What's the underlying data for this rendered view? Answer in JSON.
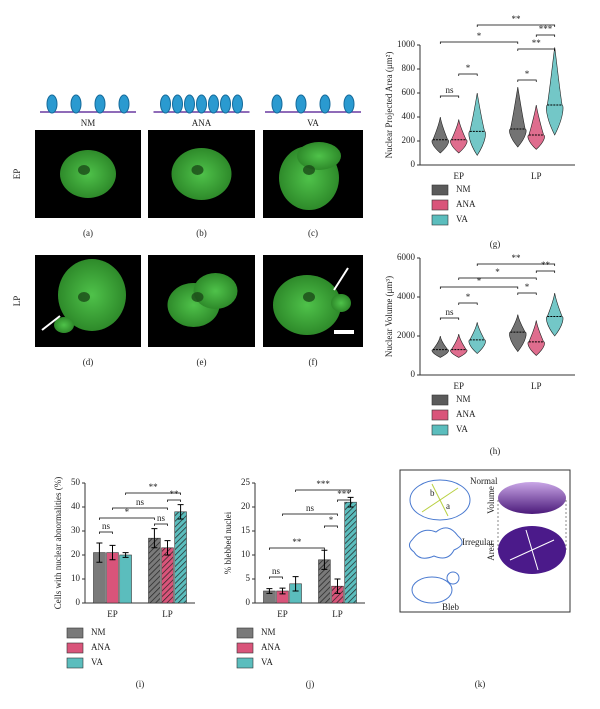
{
  "panels": {
    "columns": [
      "NM",
      "ANA",
      "VA"
    ],
    "rows": [
      "EP",
      "LP"
    ],
    "labels": [
      "(a)",
      "(b)",
      "(c)",
      "(d)",
      "(e)",
      "(f)"
    ]
  },
  "chart_data": [
    {
      "type": "violin",
      "label": "(g)",
      "y_label": "Nuclear Projected Area (μm²)",
      "categories": [
        "EP",
        "LP"
      ],
      "series": [
        {
          "name": "NM",
          "color": "#5a5a5a",
          "values": [
            210,
            300
          ],
          "low": [
            100,
            150
          ],
          "high": [
            400,
            650
          ]
        },
        {
          "name": "ANA",
          "color": "#d9547a",
          "values": [
            210,
            250
          ],
          "low": [
            100,
            130
          ],
          "high": [
            380,
            500
          ]
        },
        {
          "name": "VA",
          "color": "#5bbdbd",
          "values": [
            280,
            500
          ],
          "low": [
            80,
            250
          ],
          "high": [
            600,
            980
          ]
        }
      ],
      "ylim": [
        0,
        1000
      ],
      "yticks": [
        0,
        200,
        400,
        600,
        800,
        1000
      ],
      "annotations": [
        "**",
        "***",
        "*",
        "**",
        "*",
        "ns",
        "*"
      ]
    },
    {
      "type": "violin",
      "label": "(h)",
      "y_label": "Nuclear Volume (μm³)",
      "categories": [
        "EP",
        "LP"
      ],
      "series": [
        {
          "name": "NM",
          "color": "#5a5a5a",
          "values": [
            1300,
            2200
          ],
          "low": [
            900,
            1200
          ],
          "high": [
            2000,
            3100
          ]
        },
        {
          "name": "ANA",
          "color": "#d9547a",
          "values": [
            1300,
            1700
          ],
          "low": [
            900,
            1000
          ],
          "high": [
            2100,
            2800
          ]
        },
        {
          "name": "VA",
          "color": "#5bbdbd",
          "values": [
            1800,
            3000
          ],
          "low": [
            1100,
            2000
          ],
          "high": [
            2700,
            4200
          ]
        }
      ],
      "ylim": [
        0,
        6000
      ],
      "yticks": [
        0,
        2000,
        4000,
        6000
      ],
      "annotations": [
        "**",
        "**",
        "*",
        "*",
        "*",
        "*",
        "ns"
      ]
    },
    {
      "type": "bar",
      "label": "(i)",
      "y_label": "Cells with nuclear abnormalities (%)",
      "categories": [
        "EP",
        "LP"
      ],
      "series": [
        {
          "name": "NM",
          "color": "#7a7a7a",
          "values": [
            21,
            27
          ],
          "errors": [
            4,
            4
          ]
        },
        {
          "name": "ANA",
          "color": "#d9547a",
          "values": [
            21,
            23
          ],
          "errors": [
            3,
            3
          ]
        },
        {
          "name": "VA",
          "color": "#5bbdbd",
          "values": [
            20,
            38
          ],
          "errors": [
            1,
            3
          ]
        }
      ],
      "ylim": [
        0,
        50
      ],
      "yticks": [
        0,
        10,
        20,
        30,
        40,
        50
      ],
      "annotations": [
        "**",
        "**",
        "ns",
        "*",
        "ns",
        "ns"
      ]
    },
    {
      "type": "bar",
      "label": "(j)",
      "y_label": "% blebbed nuclei",
      "categories": [
        "EP",
        "LP"
      ],
      "series": [
        {
          "name": "NM",
          "color": "#7a7a7a",
          "values": [
            2.5,
            9
          ],
          "errors": [
            0.5,
            2
          ]
        },
        {
          "name": "ANA",
          "color": "#d9547a",
          "values": [
            2.5,
            3.5
          ],
          "errors": [
            0.6,
            1.5
          ]
        },
        {
          "name": "VA",
          "color": "#5bbdbd",
          "values": [
            4,
            21
          ],
          "errors": [
            1.5,
            1
          ]
        }
      ],
      "ylim": [
        0,
        25
      ],
      "yticks": [
        0,
        5,
        10,
        15,
        20,
        25
      ],
      "annotations": [
        "***",
        "***",
        "ns",
        "*",
        "**",
        "ns"
      ]
    }
  ],
  "diagram": {
    "label": "(k)",
    "normal": "Normal",
    "b": "b",
    "a": "a",
    "irregular": "Irregular",
    "bleb": "Bleb",
    "volume": "Volume",
    "area": "Area"
  }
}
